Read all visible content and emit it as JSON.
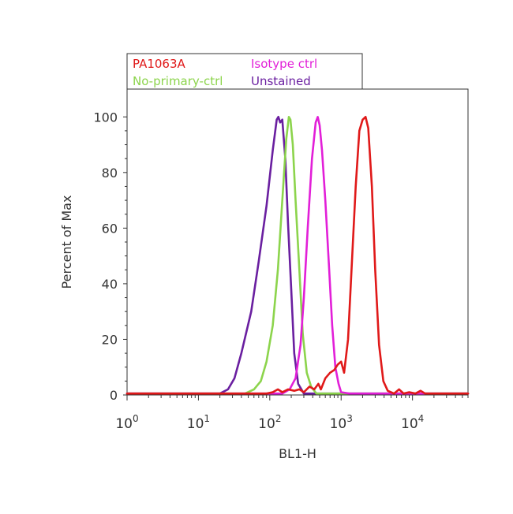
{
  "chart_data": {
    "type": "line",
    "xscale": "log",
    "xlim": [
      1,
      60000
    ],
    "ylim": [
      0,
      110
    ],
    "xlabel": "BL1-H",
    "ylabel": "Percent of Max",
    "yticks": [
      "0",
      "20",
      "40",
      "60",
      "80",
      "100"
    ],
    "xticks": [
      {
        "value": 1,
        "base": "10",
        "exp": "0"
      },
      {
        "value": 10,
        "base": "10",
        "exp": "1"
      },
      {
        "value": 100,
        "base": "10",
        "exp": "2"
      },
      {
        "value": 1000,
        "base": "10",
        "exp": "3"
      },
      {
        "value": 10000,
        "base": "10",
        "exp": "4"
      }
    ],
    "legend": {
      "position": "top-left",
      "entries": [
        "PA1063A",
        "Isotype ctrl",
        "No-primary-ctrl",
        "Unstained"
      ]
    },
    "series": [
      {
        "name": "Unstained",
        "color": "#6a1fa0",
        "x": [
          1,
          20,
          26,
          32,
          40,
          55,
          70,
          90,
          110,
          125,
          132,
          140,
          150,
          165,
          180,
          200,
          220,
          250,
          300,
          60000
        ],
        "y": [
          0.5,
          0.5,
          2,
          6,
          15,
          30,
          48,
          68,
          88,
          99,
          100,
          98,
          99,
          85,
          62,
          38,
          15,
          4,
          0.5,
          0.5
        ]
      },
      {
        "name": "No-primary-ctrl",
        "color": "#8cd44c",
        "x": [
          1,
          45,
          60,
          75,
          90,
          110,
          130,
          150,
          170,
          185,
          195,
          210,
          230,
          260,
          290,
          330,
          380,
          450,
          60000
        ],
        "y": [
          0.5,
          0.5,
          2,
          5,
          12,
          25,
          45,
          70,
          92,
          100,
          99,
          90,
          70,
          45,
          22,
          8,
          3,
          0.5,
          0.5
        ]
      },
      {
        "name": "Isotype ctrl",
        "color": "#e21fd8",
        "x": [
          1,
          150,
          190,
          230,
          270,
          300,
          340,
          390,
          440,
          470,
          500,
          540,
          600,
          680,
          750,
          830,
          920,
          1000,
          1300,
          60000
        ],
        "y": [
          0.5,
          0.5,
          2,
          6,
          18,
          35,
          60,
          85,
          98,
          100,
          97,
          88,
          70,
          45,
          25,
          10,
          4,
          1,
          0.5,
          0.5
        ]
      },
      {
        "name": "PA1063A",
        "color": "#e01919",
        "x": [
          1,
          90,
          110,
          130,
          150,
          180,
          220,
          260,
          300,
          360,
          420,
          480,
          520,
          600,
          700,
          800,
          900,
          1000,
          1100,
          1250,
          1400,
          1600,
          1800,
          2000,
          2200,
          2400,
          2700,
          3000,
          3400,
          3900,
          4500,
          5500,
          6500,
          7500,
          9000,
          11000,
          13000,
          15000,
          60000
        ],
        "y": [
          0.5,
          0.5,
          1,
          2,
          1,
          2,
          1.5,
          2,
          1,
          3,
          2,
          4,
          2,
          6,
          8,
          9,
          11,
          12,
          8,
          20,
          45,
          75,
          95,
          99,
          100,
          96,
          75,
          45,
          18,
          5,
          1.5,
          0.5,
          2,
          0.5,
          1,
          0.5,
          1.5,
          0.5,
          0.5
        ]
      }
    ]
  }
}
